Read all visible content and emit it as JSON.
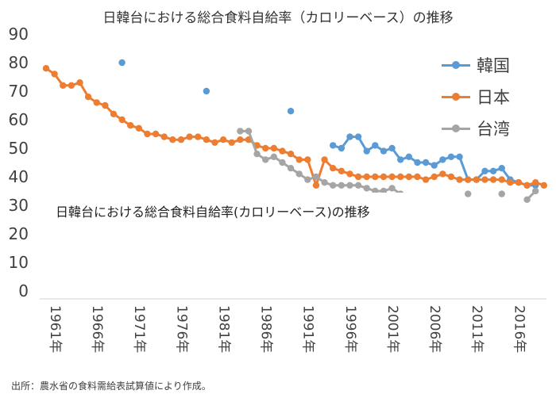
{
  "chart_data": {
    "type": "line",
    "title": "日韓台における総合食料自給率（カロリーベース）の推移",
    "overlay_title": "日韓台における総合食料自給率(カロリーベース)の推移",
    "source": "出所：農水省の食料需給表試算値により作成。",
    "ylim": [
      0,
      90
    ],
    "yticks": [
      0,
      10,
      20,
      30,
      40,
      50,
      60,
      70,
      80,
      90
    ],
    "x_range": [
      1961,
      2019
    ],
    "xtick_labels": [
      "1961年",
      "1966年",
      "1971年",
      "1976年",
      "1981年",
      "1986年",
      "1991年",
      "1996年",
      "2001年",
      "2006年",
      "2011年",
      "2016年"
    ],
    "xtick_values": [
      1961,
      1966,
      1971,
      1976,
      1981,
      1986,
      1991,
      1996,
      2001,
      2006,
      2011,
      2016
    ],
    "grid": false,
    "legend_position": "top-right",
    "series": [
      {
        "name": "韓国",
        "color": "#5B9BD5",
        "points": [
          [
            1970,
            80
          ],
          [
            1980,
            70
          ],
          [
            1990,
            63
          ],
          [
            1995,
            51
          ],
          [
            1996,
            50
          ],
          [
            1997,
            54
          ],
          [
            1998,
            54
          ],
          [
            1999,
            49
          ],
          [
            2000,
            51
          ],
          [
            2001,
            49
          ],
          [
            2002,
            50
          ],
          [
            2003,
            46
          ],
          [
            2004,
            47
          ],
          [
            2005,
            45
          ],
          [
            2006,
            45
          ],
          [
            2007,
            44
          ],
          [
            2008,
            46
          ],
          [
            2009,
            47
          ],
          [
            2010,
            47
          ],
          [
            2011,
            39
          ],
          [
            2012,
            39
          ],
          [
            2013,
            42
          ],
          [
            2014,
            42
          ],
          [
            2015,
            43
          ],
          [
            2016,
            39
          ],
          [
            2017,
            38
          ],
          [
            2018,
            37
          ],
          [
            2019,
            37
          ]
        ]
      },
      {
        "name": "日本",
        "color": "#ED7D31",
        "points": [
          [
            1961,
            78
          ],
          [
            1962,
            76
          ],
          [
            1963,
            72
          ],
          [
            1964,
            72
          ],
          [
            1965,
            73
          ],
          [
            1966,
            68
          ],
          [
            1967,
            66
          ],
          [
            1968,
            65
          ],
          [
            1969,
            62
          ],
          [
            1970,
            60
          ],
          [
            1971,
            58
          ],
          [
            1972,
            57
          ],
          [
            1973,
            55
          ],
          [
            1974,
            55
          ],
          [
            1975,
            54
          ],
          [
            1976,
            53
          ],
          [
            1977,
            53
          ],
          [
            1978,
            54
          ],
          [
            1979,
            54
          ],
          [
            1980,
            53
          ],
          [
            1981,
            52
          ],
          [
            1982,
            53
          ],
          [
            1983,
            52
          ],
          [
            1984,
            53
          ],
          [
            1985,
            53
          ],
          [
            1986,
            51
          ],
          [
            1987,
            50
          ],
          [
            1988,
            50
          ],
          [
            1989,
            49
          ],
          [
            1990,
            48
          ],
          [
            1991,
            46
          ],
          [
            1992,
            46
          ],
          [
            1993,
            37
          ],
          [
            1994,
            46
          ],
          [
            1995,
            43
          ],
          [
            1996,
            42
          ],
          [
            1997,
            41
          ],
          [
            1998,
            40
          ],
          [
            1999,
            40
          ],
          [
            2000,
            40
          ],
          [
            2001,
            40
          ],
          [
            2002,
            40
          ],
          [
            2003,
            40
          ],
          [
            2004,
            40
          ],
          [
            2005,
            40
          ],
          [
            2006,
            39
          ],
          [
            2007,
            40
          ],
          [
            2008,
            41
          ],
          [
            2009,
            40
          ],
          [
            2010,
            39
          ],
          [
            2011,
            39
          ],
          [
            2012,
            39
          ],
          [
            2013,
            39
          ],
          [
            2014,
            39
          ],
          [
            2015,
            39
          ],
          [
            2016,
            38
          ],
          [
            2017,
            38
          ],
          [
            2018,
            37
          ],
          [
            2019,
            38
          ],
          [
            2020,
            37
          ]
        ]
      },
      {
        "name": "台湾",
        "color": "#A5A5A5",
        "points": [
          [
            1984,
            56
          ],
          [
            1985,
            56
          ],
          [
            1986,
            48
          ],
          [
            1987,
            46
          ],
          [
            1988,
            47
          ],
          [
            1989,
            45
          ],
          [
            1990,
            43
          ],
          [
            1991,
            41
          ],
          [
            1992,
            39
          ],
          [
            1993,
            40
          ],
          [
            1994,
            38
          ],
          [
            1995,
            37
          ],
          [
            1996,
            37
          ],
          [
            1997,
            37
          ],
          [
            1998,
            37
          ],
          [
            1999,
            36
          ],
          [
            2000,
            35
          ],
          [
            2001,
            35
          ],
          [
            2002,
            36
          ],
          [
            2003,
            34
          ],
          [
            2011,
            34
          ],
          [
            2015,
            34
          ],
          [
            2018,
            32
          ],
          [
            2019,
            35
          ]
        ]
      }
    ]
  }
}
